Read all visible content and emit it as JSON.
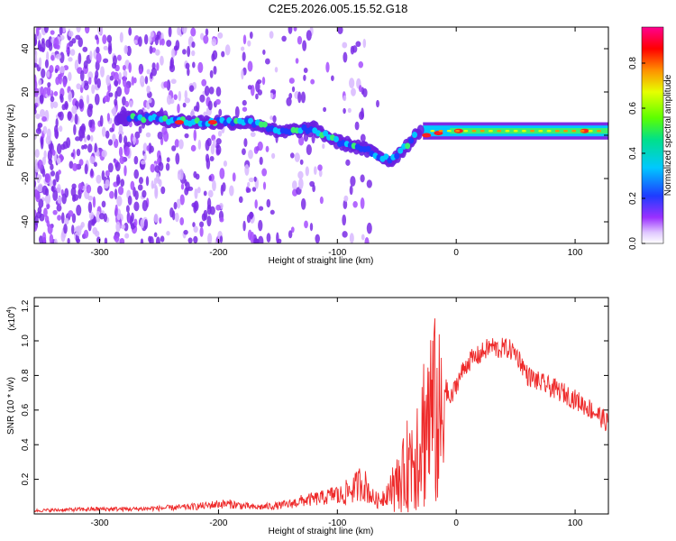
{
  "title": "C2E5.2026.005.15.52.G18",
  "chart_data": [
    {
      "type": "heatmap",
      "xlabel": "Height of straight line (km)",
      "ylabel": "Frequency (Hz)",
      "colorbar_label": "Normalized spectral amplitude",
      "xlim": [
        -355,
        128
      ],
      "ylim": [
        -50,
        50
      ],
      "xticks": [
        -300,
        -200,
        -100,
        0,
        100
      ],
      "yticks": [
        -40,
        -20,
        0,
        20,
        40
      ],
      "colorbar_range": [
        0,
        0.96
      ],
      "colorbar_ticks": [
        0.0,
        0.2,
        0.4,
        0.6,
        0.8
      ],
      "colormap": [
        "#ffffff",
        "#d9b3ff",
        "#8a2be2",
        "#1e3cff",
        "#00c8ff",
        "#00e08a",
        "#7cff00",
        "#ffff00",
        "#ff8000",
        "#ff0000",
        "#ff00a0"
      ],
      "ridge": {
        "x": [
          -285,
          -260,
          -240,
          -220,
          -205,
          -190,
          -175,
          -160,
          -150,
          -140,
          -120,
          -100,
          -85,
          -70,
          -55,
          -40,
          -32,
          -25,
          -15,
          0,
          20,
          50,
          80,
          110,
          128
        ],
        "y": [
          8,
          8,
          7,
          6,
          6,
          6,
          6,
          4,
          1,
          2,
          3,
          -3,
          -5,
          -8,
          -12,
          -4,
          2,
          0,
          1,
          2,
          2,
          2,
          2,
          2,
          2
        ]
      },
      "vertical_gaps": [
        [
          -195,
          -180
        ],
        [
          -150,
          -140
        ],
        [
          -118,
          -95
        ],
        [
          -75,
          -66
        ]
      ]
    },
    {
      "type": "line",
      "xlabel": "Height of straight line (km)",
      "ylabel": "SNR (10 * v/v)",
      "y_multiplier": "(x10",
      "y_multiplier_exp": "4",
      "y_multiplier_close": ")",
      "xlim": [
        -355,
        128
      ],
      "ylim": [
        0,
        1.25
      ],
      "xticks": [
        -300,
        -200,
        -100,
        0,
        100
      ],
      "yticks": [
        0.2,
        0.4,
        0.6,
        0.8,
        1.0,
        1.2
      ],
      "line_color": "#ee2a2a",
      "series": [
        {
          "x": [
            -355,
            -330,
            -300,
            -270,
            -250,
            -230,
            -210,
            -200,
            -190,
            -180,
            -170,
            -160,
            -150,
            -140,
            -130,
            -120,
            -110,
            -100,
            -95,
            -90,
            -85,
            -80,
            -75,
            -70,
            -65,
            -60,
            -55,
            -50,
            -45,
            -40,
            -35,
            -30,
            -25,
            -20,
            -15,
            -10,
            -5,
            0,
            5,
            10,
            15,
            20,
            25,
            30,
            35,
            40,
            45,
            50,
            55,
            60,
            65,
            70,
            80,
            90,
            100,
            110,
            120,
            128
          ],
          "y": [
            0.02,
            0.025,
            0.03,
            0.03,
            0.035,
            0.04,
            0.05,
            0.06,
            0.06,
            0.05,
            0.04,
            0.045,
            0.05,
            0.06,
            0.08,
            0.09,
            0.1,
            0.13,
            0.15,
            0.18,
            0.2,
            0.25,
            0.2,
            0.12,
            0.1,
            0.15,
            0.2,
            0.25,
            0.35,
            0.5,
            0.6,
            0.75,
            0.9,
            1.0,
            0.9,
            0.75,
            0.65,
            0.75,
            0.82,
            0.88,
            0.9,
            0.92,
            0.95,
            0.97,
            0.95,
            0.96,
            0.95,
            0.93,
            0.87,
            0.8,
            0.78,
            0.76,
            0.73,
            0.7,
            0.66,
            0.62,
            0.57,
            0.52
          ]
        }
      ]
    }
  ]
}
